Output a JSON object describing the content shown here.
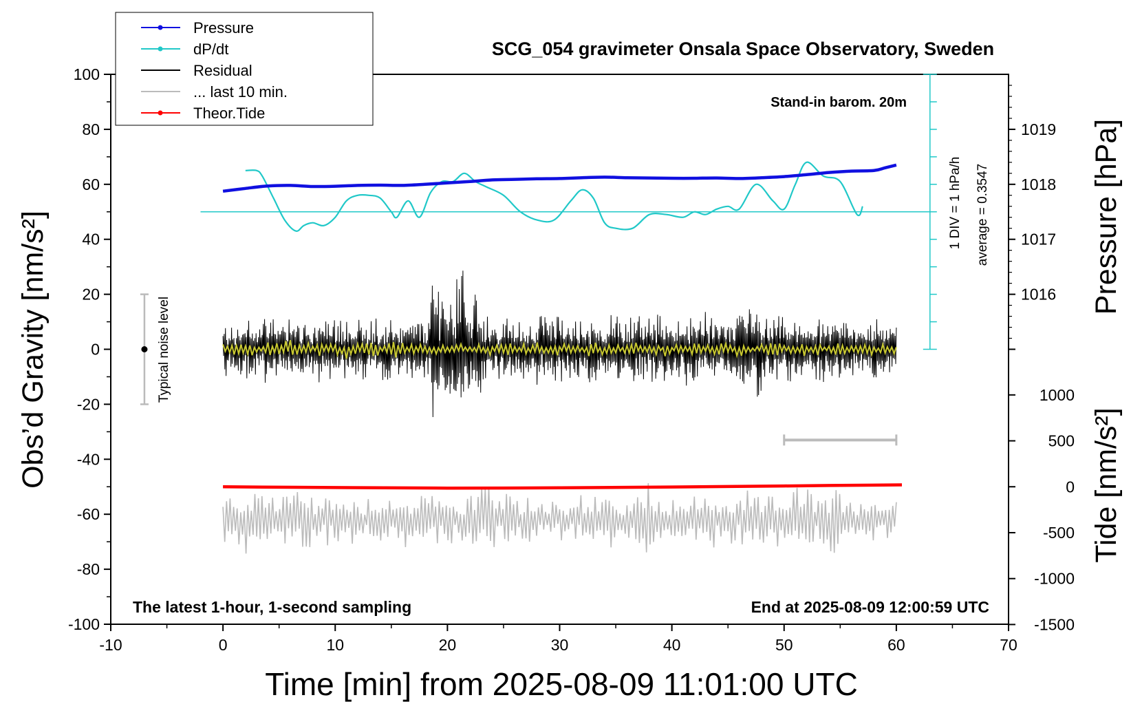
{
  "chart_data": {
    "type": "line",
    "title": "SCG_054 gravimeter Onsala Space Observatory, Sweden",
    "xlabel": "Time [min] from 2025-08-09 11:01:00 UTC",
    "ylabel_left": "Obs’d Gravity [nm/s²]",
    "ylabel_pressure": "Pressure [hPa]",
    "ylabel_tide": "Tide [nm/s²]",
    "xlim": [
      -10,
      70
    ],
    "ylim": [
      -100,
      100
    ],
    "x_ticks": [
      "-10",
      "0",
      "10",
      "20",
      "30",
      "40",
      "50",
      "60",
      "70"
    ],
    "y_ticks": [
      "100",
      "80",
      "60",
      "40",
      "20",
      "0",
      "-20",
      "-40",
      "-60",
      "-80",
      "-100"
    ],
    "pressure_axis": {
      "ticks": [
        "1019",
        "1018",
        "1017",
        "1016"
      ],
      "ticks_values": [
        1019,
        1018,
        1017,
        1016
      ],
      "gravity_at_1018": 60,
      "gravity_per_hPa": 20
    },
    "tide_axis": {
      "ticks": [
        "1000",
        "500",
        "0",
        "-500",
        "-1000",
        "-1500"
      ],
      "ticks_values": [
        1000,
        500,
        0,
        -500,
        -1000,
        -1500
      ],
      "gravity_at_0": -50,
      "gravity_per_unit": 0.0334
    },
    "legend": [
      {
        "label": "Pressure",
        "color": "#1010e0",
        "marker": true
      },
      {
        "label": "dP/dt",
        "color": "#20c8c8",
        "marker": true
      },
      {
        "label": "Residual",
        "color": "#000000",
        "marker": false
      },
      {
        "label": "... last 10 min.",
        "color": "#bbbbbb",
        "marker": false
      },
      {
        "label": "Theor.Tide",
        "color": "#ff0000",
        "marker": true
      }
    ],
    "annotations": {
      "stand_in": "Stand-in barom. 20m",
      "div_label": "1 DIV = 1 hPa/h",
      "average_label": "average = 0.3547",
      "noise_label": "Typical noise level",
      "bottom_left": "The latest 1-hour, 1-second sampling",
      "bottom_right": "End at 2025-08-09 12:00:59 UTC"
    },
    "noise_bar": {
      "x": -7,
      "ymin": -20,
      "ymax": 20,
      "center": 0
    },
    "last10_bar": {
      "xmin": 50,
      "xmax": 60,
      "y": -33
    },
    "dpdt_baseline": 50,
    "dpdt_scale": {
      "x": 63,
      "ymin": 0,
      "ymax": 100
    },
    "series": [
      {
        "name": "Pressure",
        "color": "#1010e0",
        "x": [
          0,
          2,
          4,
          6,
          8,
          10,
          12,
          14,
          16,
          18,
          20,
          22,
          24,
          26,
          28,
          30,
          32,
          34,
          36,
          38,
          40,
          42,
          44,
          46,
          48,
          50,
          52,
          54,
          56,
          58,
          59,
          60
        ],
        "y": [
          57.5,
          58.5,
          59.4,
          59.6,
          59.2,
          59.3,
          59.6,
          59.7,
          59.6,
          60.0,
          60.5,
          61.0,
          61.6,
          61.8,
          62.0,
          62.1,
          62.4,
          62.6,
          62.4,
          62.3,
          62.2,
          62.2,
          62.3,
          62.1,
          62.4,
          62.8,
          63.5,
          64.3,
          64.8,
          65.0,
          66.0,
          67.0
        ]
      },
      {
        "name": "dP/dt",
        "color": "#20c8c8",
        "x": [
          2,
          3,
          3.5,
          4.5,
          5.5,
          6.5,
          7.2,
          8,
          9,
          10,
          11,
          12,
          13,
          14,
          15,
          15.5,
          16.5,
          17.5,
          18.5,
          19.5,
          20.5,
          21.5,
          22.5,
          23.5,
          25,
          26.5,
          28,
          29.5,
          31,
          32,
          33,
          34,
          35,
          36.5,
          38,
          39.5,
          41,
          42,
          43,
          44,
          45,
          46,
          47.5,
          49,
          50,
          51,
          52,
          53.5,
          55,
          56.5,
          57
        ],
        "y": [
          65,
          65,
          63,
          55,
          47,
          43,
          45,
          46,
          45,
          48,
          54,
          56,
          56,
          55,
          50,
          48,
          54,
          48,
          57,
          61,
          61,
          64,
          61,
          59,
          56,
          50,
          47,
          47,
          54,
          58,
          55,
          46,
          44,
          44,
          49,
          49,
          48,
          50,
          49,
          51,
          52,
          51,
          60,
          54,
          51,
          60,
          68,
          63,
          61,
          49,
          52
        ]
      },
      {
        "name": "Residual",
        "color": "#000000",
        "x_range": [
          0,
          60
        ],
        "mean": 0,
        "amplitude": 7
      },
      {
        "name": "Residual (smoothed)",
        "color": "#c8c830",
        "x_range": [
          0,
          60
        ],
        "mean": 0,
        "amplitude": 1.5
      },
      {
        "name": "... last 10 min.",
        "color": "#bbbbbb",
        "x_range": [
          0,
          60
        ],
        "mean": -62,
        "amplitude": 6
      },
      {
        "name": "Theor.Tide",
        "color": "#ff0000",
        "x": [
          0,
          10,
          20,
          30,
          40,
          50,
          60.5
        ],
        "y": [
          -50.0,
          -50.3,
          -50.5,
          -50.4,
          -50.1,
          -49.7,
          -49.3
        ]
      }
    ]
  }
}
